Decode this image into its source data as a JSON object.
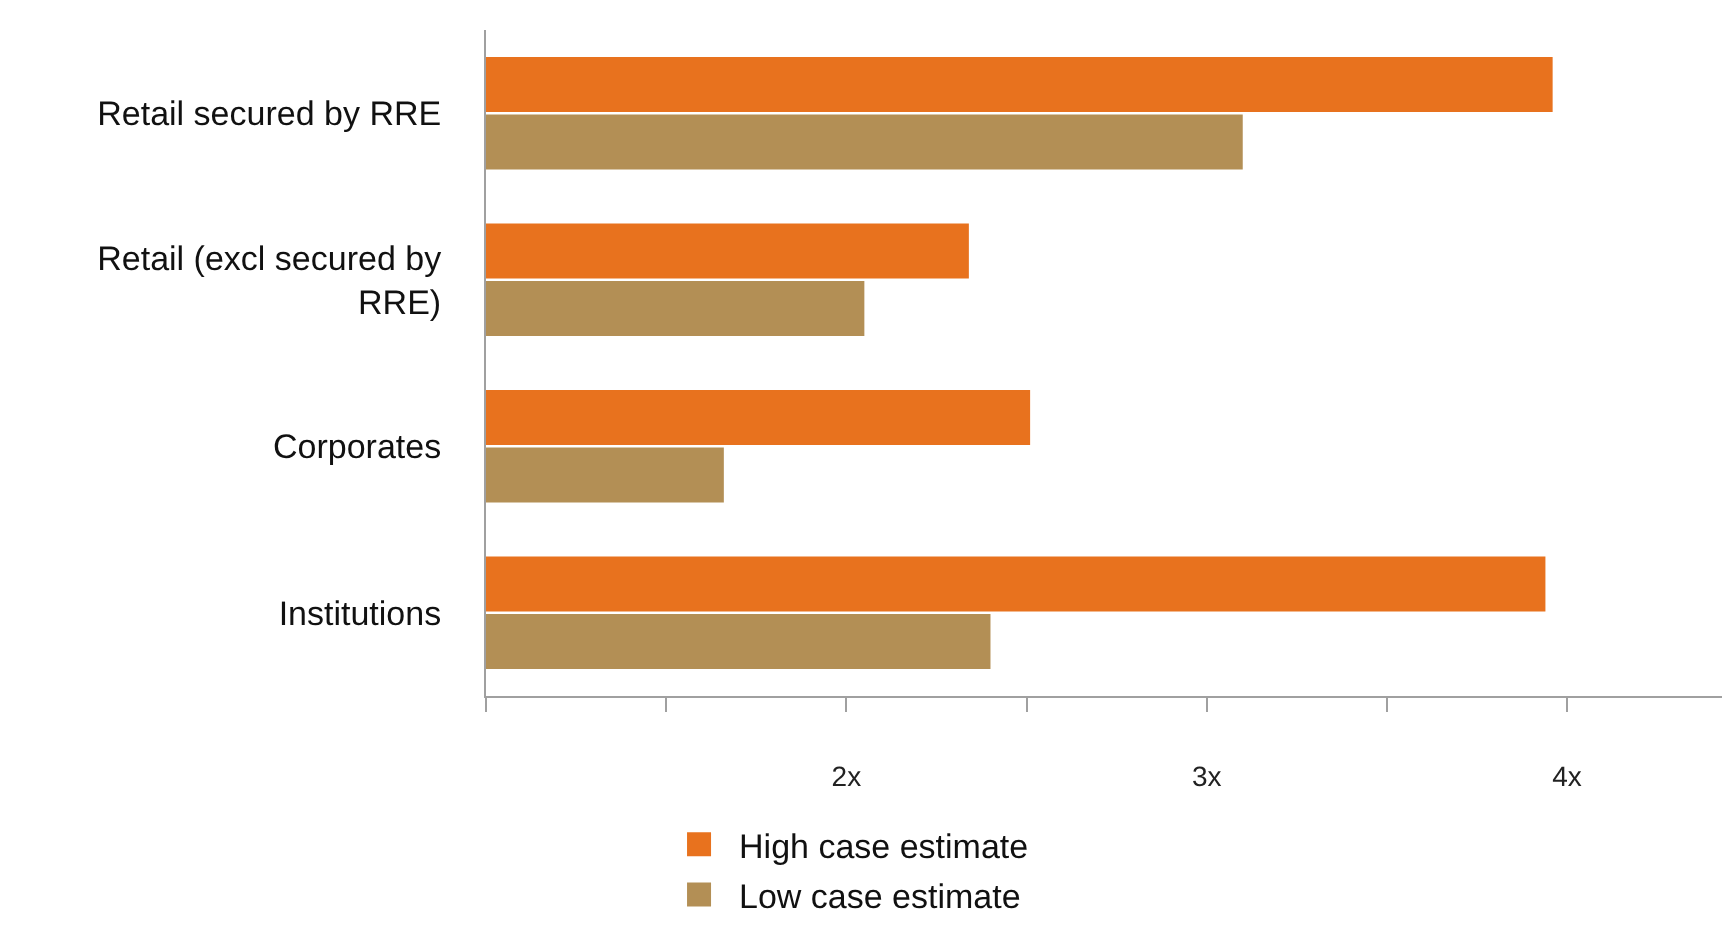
{
  "chart_data": {
    "type": "bar",
    "orientation": "horizontal",
    "categories": [
      "Retail secured by RRE",
      "Retail (excl secured by RRE)",
      "Corporates",
      "Institutions"
    ],
    "series": [
      {
        "name": "High case estimate",
        "color": "#e8721e",
        "values": [
          3.96,
          2.34,
          2.51,
          3.94
        ]
      },
      {
        "name": "Low case estimate",
        "color": "#b38f55",
        "values": [
          3.1,
          2.05,
          1.66,
          2.4
        ]
      }
    ],
    "xlim": [
      1,
      4.43
    ],
    "xticks": [
      {
        "value": 1,
        "label": null
      },
      {
        "value": 1.5,
        "label": null
      },
      {
        "value": 2,
        "label": "2x"
      },
      {
        "value": 2.5,
        "label": null
      },
      {
        "value": 3,
        "label": "3x"
      },
      {
        "value": 3.5,
        "label": null
      },
      {
        "value": 4,
        "label": "4x"
      }
    ],
    "legend": "bottom"
  }
}
